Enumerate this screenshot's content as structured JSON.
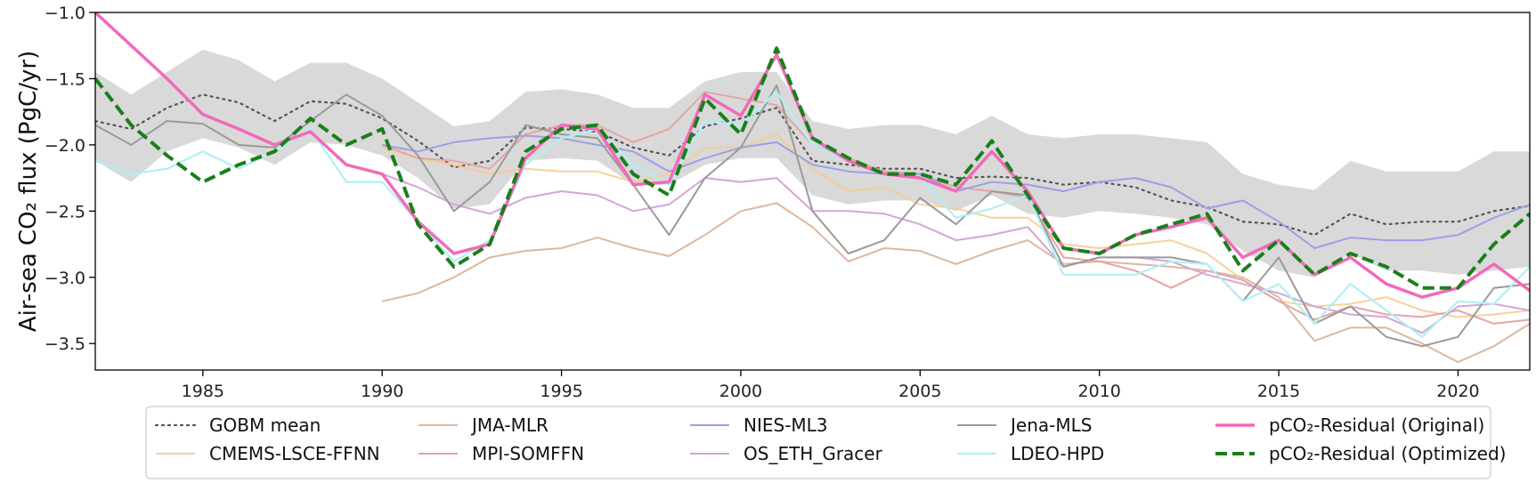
{
  "chart_data": {
    "type": "line",
    "ylabel": "Air-sea CO₂ flux (PgC/yr)",
    "xlabel": "",
    "xlim": [
      1982,
      2022
    ],
    "ylim": [
      -3.7,
      -1.0
    ],
    "xticks": [
      1985,
      1990,
      1995,
      2000,
      2005,
      2010,
      2015,
      2020
    ],
    "yticks": [
      -1.0,
      -1.5,
      -2.0,
      -2.5,
      -3.0,
      -3.5
    ],
    "ytick_labels": [
      "−1.0",
      "−1.5",
      "−2.0",
      "−2.5",
      "−3.0",
      "−3.5"
    ],
    "grid": false,
    "legend_position": "bottom",
    "band": {
      "color": "#d9d9d9",
      "x": [
        1982,
        1983,
        1984,
        1985,
        1986,
        1987,
        1988,
        1989,
        1990,
        1991,
        1992,
        1993,
        1994,
        1995,
        1996,
        1997,
        1998,
        1999,
        2000,
        2001,
        2002,
        2003,
        2004,
        2005,
        2006,
        2007,
        2008,
        2009,
        2010,
        2011,
        2012,
        2013,
        2014,
        2015,
        2016,
        2017,
        2018,
        2019,
        2020,
        2021,
        2022
      ],
      "upper": [
        -1.45,
        -1.62,
        -1.45,
        -1.28,
        -1.36,
        -1.52,
        -1.38,
        -1.38,
        -1.5,
        -1.68,
        -1.86,
        -1.82,
        -1.6,
        -1.58,
        -1.62,
        -1.72,
        -1.72,
        -1.52,
        -1.45,
        -1.45,
        -1.82,
        -1.88,
        -1.85,
        -1.85,
        -1.92,
        -1.78,
        -1.92,
        -1.95,
        -1.92,
        -1.92,
        -1.95,
        -1.98,
        -2.22,
        -2.3,
        -2.34,
        -2.12,
        -2.2,
        -2.2,
        -2.2,
        -2.05,
        -2.05
      ],
      "lower": [
        -2.12,
        -2.28,
        -2.05,
        -1.95,
        -2.02,
        -2.15,
        -1.98,
        -2.0,
        -2.08,
        -2.25,
        -2.48,
        -2.45,
        -2.12,
        -2.1,
        -2.12,
        -2.3,
        -2.3,
        -2.15,
        -2.1,
        -2.1,
        -2.38,
        -2.45,
        -2.42,
        -2.42,
        -2.5,
        -2.38,
        -2.52,
        -2.55,
        -2.5,
        -2.52,
        -2.55,
        -2.6,
        -2.8,
        -2.95,
        -3.0,
        -2.82,
        -2.95,
        -2.95,
        -2.98,
        -2.95,
        -2.92
      ]
    },
    "x": [
      1982,
      1983,
      1984,
      1985,
      1986,
      1987,
      1988,
      1989,
      1990,
      1991,
      1992,
      1993,
      1994,
      1995,
      1996,
      1997,
      1998,
      1999,
      2000,
      2001,
      2002,
      2003,
      2004,
      2005,
      2006,
      2007,
      2008,
      2009,
      2010,
      2011,
      2012,
      2013,
      2014,
      2015,
      2016,
      2017,
      2018,
      2019,
      2020,
      2021,
      2022
    ],
    "series": [
      {
        "name": "GOBM mean",
        "color": "#555555",
        "width": 2.2,
        "dash": "2,5",
        "opacity": 1,
        "values": [
          -1.82,
          -1.88,
          -1.72,
          -1.62,
          -1.68,
          -1.82,
          -1.67,
          -1.69,
          -1.8,
          -1.97,
          -2.17,
          -2.12,
          -1.87,
          -1.88,
          -1.9,
          -2.02,
          -2.08,
          -1.86,
          -1.8,
          -1.72,
          -2.12,
          -2.15,
          -2.18,
          -2.18,
          -2.25,
          -2.24,
          -2.25,
          -2.3,
          -2.28,
          -2.32,
          -2.42,
          -2.47,
          -2.58,
          -2.6,
          -2.68,
          -2.52,
          -2.6,
          -2.58,
          -2.58,
          -2.5,
          -2.46
        ]
      },
      {
        "name": "CMEMS-LSCE-FFNN",
        "color": "#f7c98a",
        "width": 2,
        "dash": "",
        "opacity": 0.85,
        "values": [
          null,
          null,
          null,
          null,
          null,
          null,
          null,
          null,
          -2.02,
          -2.1,
          -2.15,
          -2.22,
          -2.18,
          -2.2,
          -2.2,
          -2.28,
          -2.22,
          -2.02,
          -2.02,
          -1.92,
          -2.18,
          -2.35,
          -2.32,
          -2.45,
          -2.48,
          -2.55,
          -2.55,
          -2.75,
          -2.78,
          -2.75,
          -2.72,
          -2.82,
          -3.02,
          -3.18,
          -3.22,
          -3.2,
          -3.15,
          -3.25,
          -3.3,
          -3.28,
          -3.25
        ]
      },
      {
        "name": "JMA-MLR",
        "color": "#dcb8a0",
        "width": 2,
        "dash": "",
        "opacity": 1,
        "values": [
          null,
          null,
          null,
          null,
          null,
          null,
          null,
          null,
          -3.18,
          -3.12,
          -3.0,
          -2.85,
          -2.8,
          -2.78,
          -2.7,
          -2.78,
          -2.84,
          -2.68,
          -2.5,
          -2.44,
          -2.62,
          -2.88,
          -2.78,
          -2.8,
          -2.9,
          -2.8,
          -2.72,
          -2.9,
          -2.88,
          -2.9,
          -2.92,
          -2.95,
          -3.0,
          -3.15,
          -3.48,
          -3.38,
          -3.38,
          -3.5,
          -3.64,
          -3.52,
          -3.35
        ]
      },
      {
        "name": "MPI-SOMFFN",
        "color": "#e5a5a5",
        "width": 2,
        "dash": "",
        "opacity": 1,
        "values": [
          null,
          null,
          null,
          null,
          null,
          null,
          null,
          null,
          -2.0,
          -2.1,
          -2.12,
          -2.18,
          -1.92,
          -1.85,
          -1.85,
          -1.98,
          -1.88,
          -1.6,
          -1.65,
          -1.7,
          -2.0,
          -2.1,
          -2.2,
          -2.22,
          -2.32,
          -2.35,
          -2.4,
          -2.85,
          -2.88,
          -2.95,
          -3.08,
          -2.95,
          -3.02,
          -3.18,
          -3.32,
          -3.22,
          -3.28,
          -3.3,
          -3.25,
          -3.35,
          -3.32
        ]
      },
      {
        "name": "NIES-ML3",
        "color": "#9e9ee8",
        "width": 2,
        "dash": "",
        "opacity": 1,
        "values": [
          null,
          null,
          null,
          null,
          null,
          null,
          null,
          null,
          -2.0,
          -2.05,
          -1.98,
          -1.95,
          -1.93,
          -1.95,
          -2.0,
          -2.05,
          -2.2,
          -2.1,
          -2.02,
          -1.98,
          -2.15,
          -2.2,
          -2.22,
          -2.22,
          -2.35,
          -2.28,
          -2.3,
          -2.35,
          -2.28,
          -2.25,
          -2.32,
          -2.48,
          -2.42,
          -2.58,
          -2.78,
          -2.7,
          -2.72,
          -2.72,
          -2.68,
          -2.55,
          -2.45
        ]
      },
      {
        "name": "OS_ETH_Gracer",
        "color": "#d4a6d6",
        "width": 2,
        "dash": "",
        "opacity": 1,
        "values": [
          null,
          null,
          null,
          null,
          null,
          null,
          null,
          null,
          -2.22,
          -2.32,
          -2.45,
          -2.52,
          -2.4,
          -2.35,
          -2.38,
          -2.5,
          -2.45,
          -2.25,
          -2.28,
          -2.25,
          -2.5,
          -2.5,
          -2.52,
          -2.6,
          -2.72,
          -2.68,
          -2.62,
          -2.92,
          -2.85,
          -2.85,
          -2.88,
          -2.98,
          -3.05,
          -3.12,
          -3.22,
          -3.28,
          -3.3,
          -3.42,
          -3.22,
          -3.2,
          -3.25
        ]
      },
      {
        "name": "Jena-MLS",
        "color": "#9a9a9a",
        "width": 2,
        "dash": "",
        "opacity": 1,
        "values": [
          -1.85,
          -2.0,
          -1.82,
          -1.84,
          -2.0,
          -2.02,
          -1.82,
          -1.62,
          -1.78,
          -2.08,
          -2.5,
          -2.28,
          -1.85,
          -1.92,
          -1.95,
          -2.3,
          -2.68,
          -2.25,
          -2.02,
          -1.55,
          -2.5,
          -2.82,
          -2.72,
          -2.4,
          -2.6,
          -2.35,
          -2.38,
          -2.92,
          -2.85,
          -2.85,
          -2.85,
          -2.9,
          -3.18,
          -2.85,
          -3.35,
          -3.22,
          -3.45,
          -3.52,
          -3.45,
          -3.08,
          -3.05
        ]
      },
      {
        "name": "LDEO-HPD",
        "color": "#b0f0f5",
        "width": 2.2,
        "dash": "",
        "opacity": 1,
        "values": [
          -2.12,
          -2.22,
          -2.18,
          -2.05,
          -2.18,
          -2.05,
          -1.88,
          -2.28,
          -2.28,
          -2.58,
          -2.88,
          -2.72,
          -2.15,
          -1.95,
          -1.88,
          -2.15,
          -2.3,
          -1.82,
          -1.85,
          -1.6,
          -2.0,
          -2.12,
          -2.22,
          -2.25,
          -2.55,
          -2.48,
          -2.38,
          -2.98,
          -2.98,
          -2.98,
          -2.88,
          -2.9,
          -3.18,
          -3.05,
          -3.35,
          -3.05,
          -3.25,
          -3.45,
          -3.18,
          -3.2,
          -2.92
        ]
      },
      {
        "name": "pCO₂-Residual (Original)",
        "color": "#f26ab9",
        "width": 3.5,
        "dash": "",
        "opacity": 1,
        "values": [
          -1.0,
          -1.25,
          -1.5,
          -1.77,
          -1.88,
          -2.0,
          -1.9,
          -2.15,
          -2.22,
          -2.58,
          -2.82,
          -2.75,
          -2.1,
          -1.85,
          -1.88,
          -2.3,
          -2.28,
          -1.62,
          -1.78,
          -1.32,
          -1.95,
          -2.12,
          -2.22,
          -2.25,
          -2.35,
          -2.05,
          -2.35,
          -2.78,
          -2.82,
          -2.68,
          -2.62,
          -2.55,
          -2.85,
          -2.72,
          -2.98,
          -2.85,
          -3.05,
          -3.15,
          -3.08,
          -2.9,
          -3.1
        ]
      },
      {
        "name": "pCO₂-Residual (Optimized)",
        "color": "#1a7f1a",
        "width": 4,
        "dash": "13,6",
        "opacity": 1,
        "values": [
          -1.5,
          -1.85,
          -2.08,
          -2.28,
          -2.15,
          -2.05,
          -1.8,
          -2.0,
          -1.88,
          -2.6,
          -2.92,
          -2.75,
          -2.05,
          -1.88,
          -1.85,
          -2.22,
          -2.38,
          -1.65,
          -1.92,
          -1.27,
          -1.95,
          -2.1,
          -2.22,
          -2.22,
          -2.3,
          -1.97,
          -2.38,
          -2.78,
          -2.82,
          -2.68,
          -2.6,
          -2.52,
          -2.95,
          -2.72,
          -2.98,
          -2.82,
          -2.92,
          -3.08,
          -3.08,
          -2.75,
          -2.52
        ]
      }
    ],
    "legend": {
      "columns": [
        [
          "GOBM mean",
          "CMEMS-LSCE-FFNN"
        ],
        [
          "JMA-MLR",
          "MPI-SOMFFN"
        ],
        [
          "NIES-ML3",
          "OS_ETH_Gracer"
        ],
        [
          "Jena-MLS",
          "LDEO-HPD"
        ],
        [
          "pCO₂-Residual (Original)",
          "pCO₂-Residual (Optimized)"
        ]
      ]
    }
  }
}
